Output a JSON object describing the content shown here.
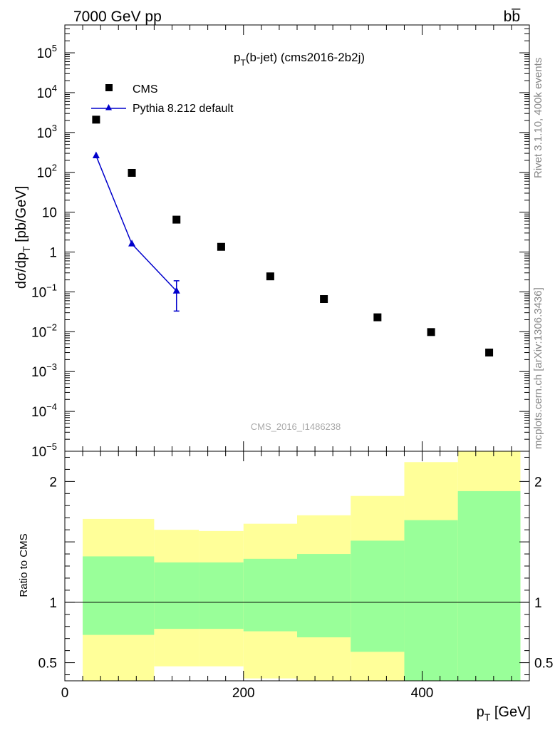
{
  "header": {
    "energy_label": "7000 GeV pp",
    "process_label": "bb̅"
  },
  "side_labels": {
    "rivet": "Rivet 3.1.10,  400k events",
    "source": "mcplots.cern.ch [arXiv:1306.3436]"
  },
  "colors": {
    "mc": "#0000cc",
    "band_inner": "#99ff99",
    "band_outer": "#ffff99",
    "data": "#000000"
  },
  "chart_data": [
    {
      "type": "scatter",
      "panel": "main",
      "title_main": "p",
      "title_sub": "T",
      "title_rest": "(b-jet) (cms2016-2b2j)",
      "ylabel_main": "dσ/dp",
      "ylabel_sub": "T",
      "ylabel_rest": " [pb/GeV]",
      "yscale": "log",
      "ylim": [
        1e-05,
        500000
      ],
      "xlim": [
        0,
        520
      ],
      "y_ticks": [
        {
          "value": 100000,
          "base": "10",
          "exp": "5"
        },
        {
          "value": 10000,
          "base": "10",
          "exp": "4"
        },
        {
          "value": 1000,
          "base": "10",
          "exp": "3"
        },
        {
          "value": 100,
          "base": "10",
          "exp": "2"
        },
        {
          "value": 10,
          "base": "10",
          "exp": ""
        },
        {
          "value": 1,
          "base": "1",
          "exp": ""
        },
        {
          "value": 0.1,
          "base": "10",
          "exp": "−1"
        },
        {
          "value": 0.01,
          "base": "10",
          "exp": "−2"
        },
        {
          "value": 0.001,
          "base": "10",
          "exp": "−3"
        },
        {
          "value": 0.0001,
          "base": "10",
          "exp": "−4"
        },
        {
          "value": 1e-05,
          "base": "10",
          "exp": "−5"
        }
      ],
      "legend": [
        {
          "name": "CMS",
          "marker": "square"
        },
        {
          "name": "Pythia 8.212 default",
          "marker": "triangle"
        }
      ],
      "series": [
        {
          "name": "CMS",
          "x": [
            35,
            75,
            125,
            175,
            230,
            290,
            350,
            410,
            475
          ],
          "y": [
            2100,
            97,
            6.5,
            1.35,
            0.245,
            0.066,
            0.023,
            0.0098,
            0.003
          ]
        },
        {
          "name": "Pythia 8.212 default",
          "x": [
            35,
            75,
            125
          ],
          "y": [
            260,
            1.6,
            0.105
          ],
          "err_low": [
            0,
            0,
            0.072
          ],
          "err_high": [
            0,
            0,
            0.085
          ]
        }
      ],
      "watermark": "CMS_2016_I1486238"
    },
    {
      "type": "area",
      "panel": "ratio",
      "ylabel": "Ratio to CMS",
      "xlabel_main": "p",
      "xlabel_sub": "T",
      "xlabel_rest": " [GeV]",
      "ylim": [
        0.35,
        2.25
      ],
      "xlim": [
        0,
        520
      ],
      "y_ticks": [
        "0.5",
        "1",
        "2"
      ],
      "x_ticks": [
        "0",
        "200",
        "400"
      ],
      "bins": [
        {
          "lo": 20,
          "hi": 100,
          "inner_lo": 0.73,
          "inner_hi": 1.38,
          "outer_lo": 0.35,
          "outer_hi": 1.69
        },
        {
          "lo": 100,
          "hi": 150,
          "inner_lo": 0.78,
          "inner_hi": 1.33,
          "outer_lo": 0.47,
          "outer_hi": 1.6
        },
        {
          "lo": 150,
          "hi": 200,
          "inner_lo": 0.78,
          "inner_hi": 1.33,
          "outer_lo": 0.47,
          "outer_hi": 1.59
        },
        {
          "lo": 200,
          "hi": 260,
          "inner_lo": 0.76,
          "inner_hi": 1.36,
          "outer_lo": 0.37,
          "outer_hi": 1.65
        },
        {
          "lo": 260,
          "hi": 320,
          "inner_lo": 0.71,
          "inner_hi": 1.4,
          "outer_lo": 0.35,
          "outer_hi": 1.72
        },
        {
          "lo": 320,
          "hi": 380,
          "inner_lo": 0.59,
          "inner_hi": 1.51,
          "outer_lo": 0.35,
          "outer_hi": 1.88
        },
        {
          "lo": 380,
          "hi": 440,
          "inner_lo": 0.35,
          "inner_hi": 1.68,
          "outer_lo": 0.35,
          "outer_hi": 2.16
        },
        {
          "lo": 440,
          "hi": 510,
          "inner_lo": 0.35,
          "inner_hi": 1.92,
          "outer_lo": 0.35,
          "outer_hi": 2.25
        }
      ],
      "reference_line": 1
    }
  ]
}
